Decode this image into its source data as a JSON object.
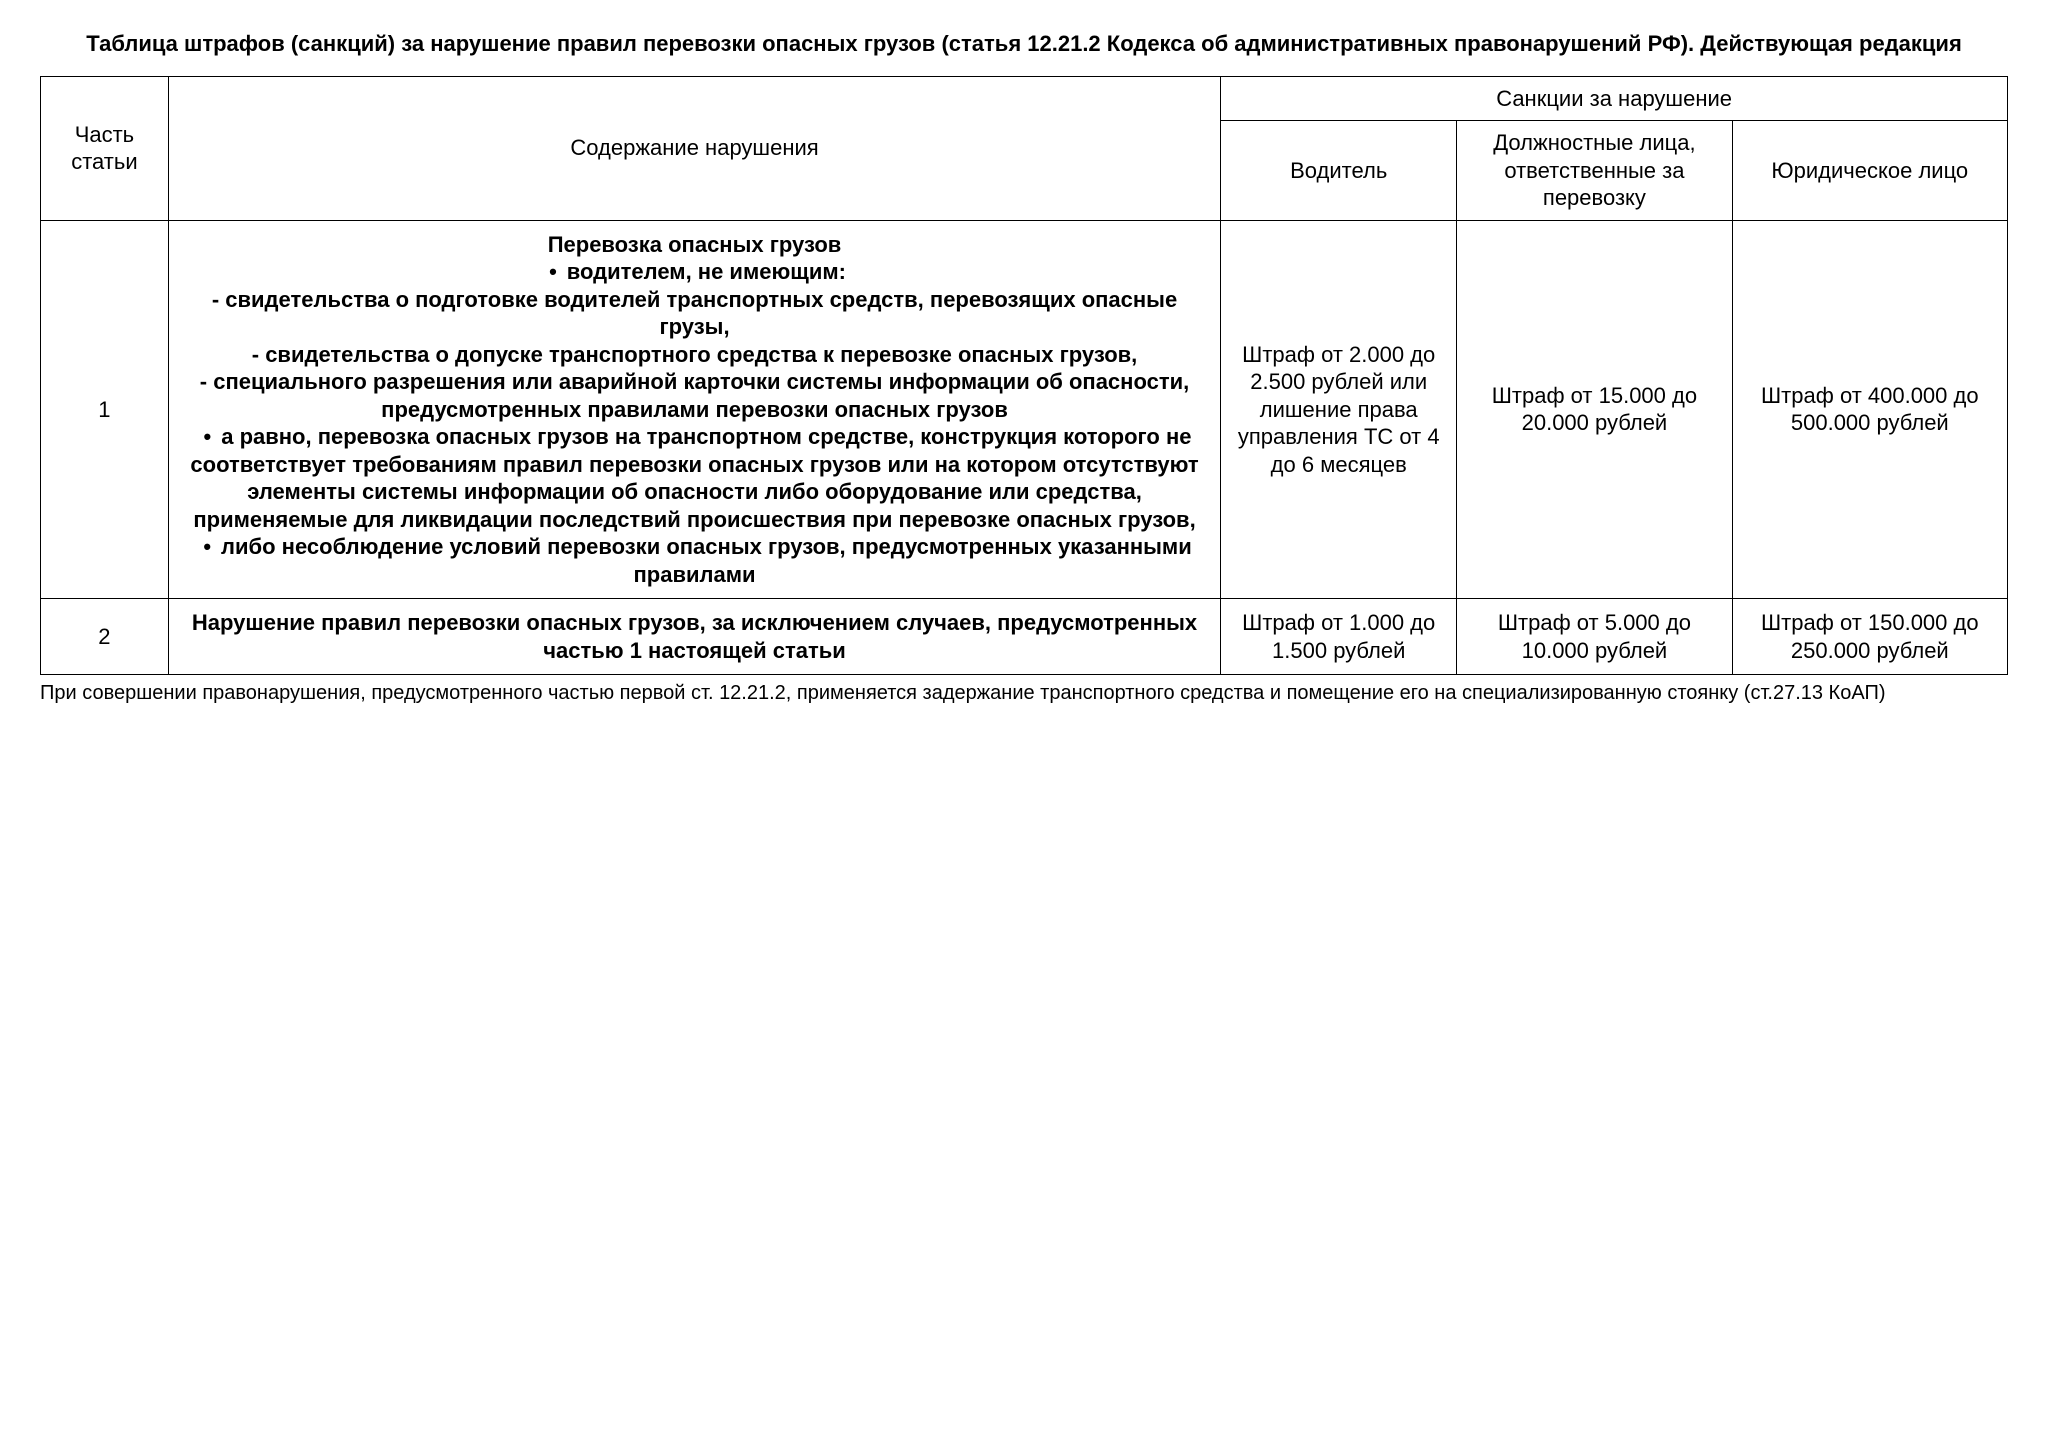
{
  "title": "Таблица штрафов (санкций) за нарушение правил перевозки опасных грузов (статья 12.21.2 Кодекса об административных правонарушений РФ). Действующая редакция",
  "headers": {
    "part": "Часть статьи",
    "description": "Содержание нарушения",
    "sanctions_group": "Санкции за нарушение",
    "driver": "Водитель",
    "official": "Должностные лица, ответственные за перевозку",
    "legal": "Юридическое лицо"
  },
  "rows": [
    {
      "part": "1",
      "desc_title": "Перевозка опасных грузов",
      "bullet1": "водителем, не имеющим:",
      "dash1": "- свидетельства о подготовке водителей транспортных средств, перевозящих опасные грузы,",
      "dash2": "- свидетельства о допуске транспортного средства к перевозке опасных грузов,",
      "dash3": "- специального разрешения или аварийной карточки системы информации об опасности, предусмотренных правилами перевозки опасных грузов",
      "bullet2": "а равно, перевозка опасных грузов на транспортном средстве, конструкция которого не соответствует требованиям правил перевозки опасных грузов или на котором отсутствуют элементы системы информации об опасности либо оборудование или средства, применяемые для ликвидации последствий происшествия при перевозке опасных грузов,",
      "bullet3": "либо несоблюдение условий перевозки опасных грузов, предусмотренных указанными правилами",
      "driver": "Штраф от 2.000 до 2.500 рублей или лишение права управления ТС от 4 до 6 месяцев",
      "official": "Штраф от 15.000 до 20.000 рублей",
      "legal": "Штраф от 400.000 до 500.000 рублей"
    },
    {
      "part": "2",
      "desc_simple": "Нарушение правил перевозки опасных грузов, за исключением случаев, предусмотренных частью 1 настоящей статьи",
      "driver": "Штраф от 1.000 до 1.500 рублей",
      "official": "Штраф от 5.000 до 10.000 рублей",
      "legal": "Штраф от 150.000 до 250.000 рублей"
    }
  ],
  "footnote": "При совершении правонарушения, предусмотренного частью первой ст. 12.21.2, применяется задержание транспортного средства и помещение его на специализированную стоянку (ст.27.13 КоАП)"
}
